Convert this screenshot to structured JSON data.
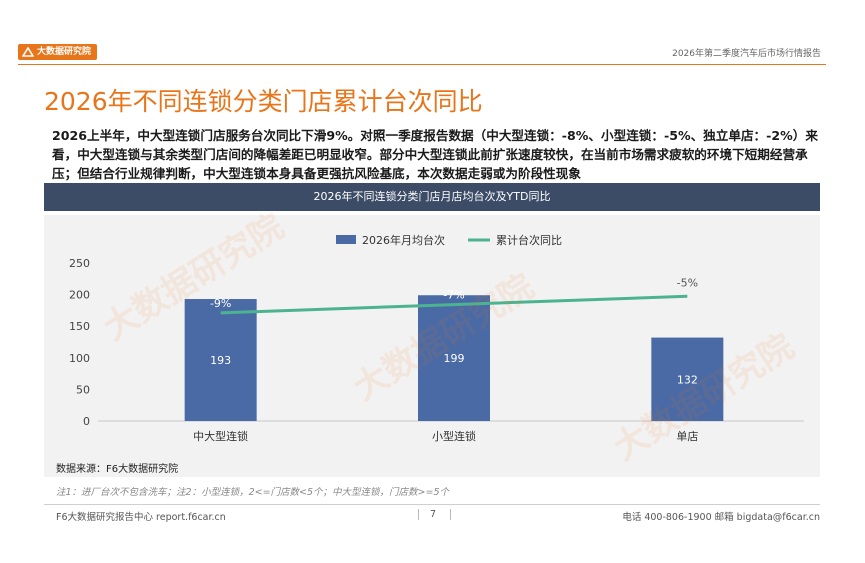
{
  "header": {
    "logo_text": "大数据研究院",
    "report_title": "2026年第二季度汽车后市场行情报告"
  },
  "page": {
    "title": "2026年不同连锁分类门店累计台次同比",
    "summary": "2026上半年，中大型连锁门店服务台次同比下滑9%。对照一季度报告数据（中大型连锁：-8%、小型连锁：-5%、独立单店：-2%）来看，中大型连锁与其余类型门店间的降幅差距已明显收窄。部分中大型连锁此前扩张速度较快，在当前市场需求疲软的环境下短期经营承压；但结合行业规律判断，中大型连锁本身具备更强抗风险基底，本次数据走弱或为阶段性现象",
    "chart_header": "2026年不同连锁分类门店月店均台次及YTD同比",
    "source": "数据来源：F6大数据研究院",
    "note": "注1：进厂台次不包含洗车；注2：小型连锁，2<=门店数<5个；中大型连锁，门店数>=5个",
    "watermark": "大数据研究院"
  },
  "footer": {
    "left": "F6大数据研究报告中心 report.f6car.cn",
    "page_number": "7",
    "contact": "电话 400-806-1900  邮箱 bigdata@f6car.cn"
  },
  "chart_data": {
    "type": "bar",
    "title": "2026年不同连锁分类门店月店均台次及YTD同比",
    "categories": [
      "中大型连锁",
      "小型连锁",
      "单店"
    ],
    "series": [
      {
        "name": "2026年月均台次",
        "type": "bar",
        "values": [
          193,
          199,
          132
        ],
        "labels": [
          "193",
          "199",
          "132"
        ],
        "color": "#4a6aa5"
      },
      {
        "name": "累计台次同比",
        "type": "line",
        "values": [
          -9,
          -7,
          -5
        ],
        "labels": [
          "-9%",
          "-7%",
          "-5%"
        ],
        "color": "#4cb391"
      }
    ],
    "ylim": [
      0,
      250
    ],
    "yticks": [
      0,
      50,
      100,
      150,
      200,
      250
    ],
    "secondary_ylim": [
      -35,
      3
    ],
    "legend_position": "top-center",
    "grid": false
  }
}
